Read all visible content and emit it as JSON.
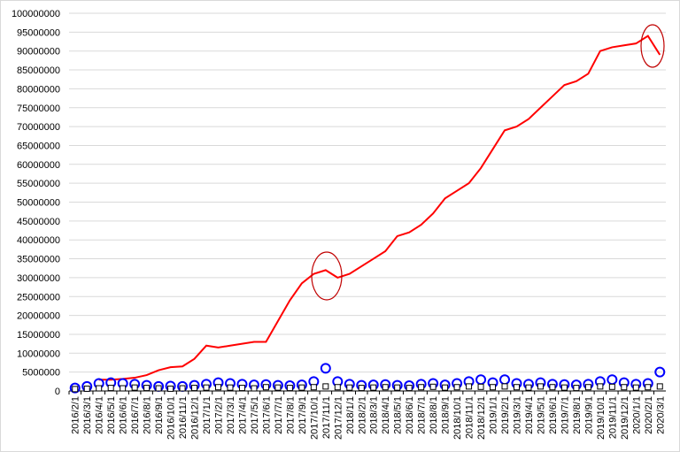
{
  "chart_data": {
    "type": "line",
    "categories": [
      "2016/2/1",
      "2016/3/1",
      "2016/4/1",
      "2016/5/1",
      "2016/6/1",
      "2016/7/1",
      "2016/8/1",
      "2016/9/1",
      "2016/10/1",
      "2016/11/1",
      "2016/12/1",
      "2017/1/1",
      "2017/2/1",
      "2017/3/1",
      "2017/4/1",
      "2017/5/1",
      "2017/6/1",
      "2017/7/1",
      "2017/8/1",
      "2017/9/1",
      "2017/10/1",
      "2017/11/1",
      "2017/12/1",
      "2018/1/1",
      "2018/2/1",
      "2018/3/1",
      "2018/4/1",
      "2018/5/1",
      "2018/6/1",
      "2018/7/1",
      "2018/8/1",
      "2018/9/1",
      "2018/10/1",
      "2018/11/1",
      "2018/12/1",
      "2019/1/1",
      "2019/2/1",
      "2019/3/1",
      "2019/4/1",
      "2019/5/1",
      "2019/6/1",
      "2019/7/1",
      "2019/8/1",
      "2019/9/1",
      "2019/10/1",
      "2019/11/1",
      "2019/12/1",
      "2020/1/1",
      "2020/2/1",
      "2020/3/1"
    ],
    "series": [
      {
        "color": "#ff0000",
        "marker": "line",
        "values": [
          null,
          null,
          3000000,
          3000000,
          3200000,
          3500000,
          4200000,
          5500000,
          6300000,
          6500000,
          8500000,
          12000000,
          11500000,
          12000000,
          12500000,
          13000000,
          13000000,
          18500000,
          24000000,
          28500000,
          31000000,
          32000000,
          30000000,
          31000000,
          33000000,
          35000000,
          37000000,
          41000000,
          42000000,
          44000000,
          47000000,
          51000000,
          53000000,
          55000000,
          59000000,
          64000000,
          69000000,
          70000000,
          72000000,
          75000000,
          78000000,
          81000000,
          82000000,
          84000000,
          90000000,
          91000000,
          91500000,
          92000000,
          94000000,
          89000000
        ]
      },
      {
        "color": "#0000ff",
        "marker": "circle",
        "values": [
          800000,
          1200000,
          2000000,
          2200000,
          2000000,
          1800000,
          1500000,
          1200000,
          1300000,
          1200000,
          1500000,
          1800000,
          2200000,
          2000000,
          1800000,
          1600000,
          1700000,
          1500000,
          1400000,
          1600000,
          2500000,
          6000000,
          2500000,
          1800000,
          1500000,
          1600000,
          1700000,
          1500000,
          1400000,
          1800000,
          2000000,
          1600000,
          2000000,
          2500000,
          3000000,
          2200000,
          3000000,
          2000000,
          1800000,
          2200000,
          1800000,
          1700000,
          1600000,
          1800000,
          2500000,
          3000000,
          2200000,
          1800000,
          2000000,
          5000000
        ]
      },
      {
        "color": "#000000",
        "marker": "square",
        "values": [
          500000,
          600000,
          700000,
          800000,
          700000,
          900000,
          800000,
          700000,
          600000,
          700000,
          800000,
          900000,
          1000000,
          900000,
          800000,
          700000,
          1000000,
          900000,
          800000,
          900000,
          1000000,
          1200000,
          1000000,
          900000,
          800000,
          900000,
          1000000,
          900000,
          800000,
          1000000,
          1100000,
          900000,
          1000000,
          1200000,
          1100000,
          1000000,
          1200000,
          1000000,
          900000,
          1200000,
          1000000,
          900000,
          800000,
          1000000,
          1200000,
          1100000,
          1000000,
          900000,
          1000000,
          1200000
        ]
      }
    ],
    "ylim": [
      0,
      100000000
    ],
    "yticks": [
      0,
      5000000,
      10000000,
      15000000,
      20000000,
      25000000,
      30000000,
      35000000,
      40000000,
      45000000,
      50000000,
      55000000,
      60000000,
      65000000,
      70000000,
      75000000,
      80000000,
      85000000,
      90000000,
      95000000,
      100000000
    ],
    "grid": true
  }
}
